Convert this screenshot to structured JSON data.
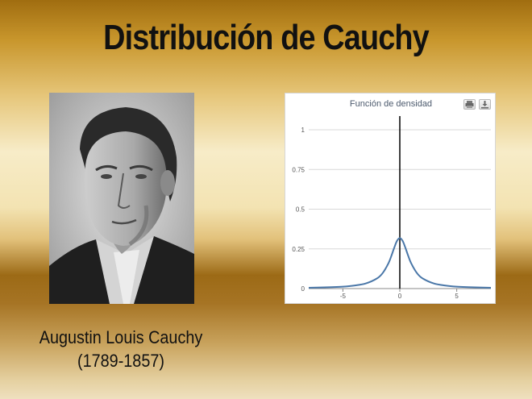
{
  "slide": {
    "title": "Distribución de Cauchy",
    "caption_name": "Augustin Louis Cauchy",
    "caption_years": "(1789-1857)"
  },
  "toolbar": {
    "print_icon": "printer-icon",
    "download_icon": "download-icon"
  },
  "colors": {
    "curve": "#4a77a8",
    "grid": "#d8d8d8",
    "axis": "#000000"
  },
  "chart_data": {
    "type": "line",
    "title": "Función de densidad",
    "xlabel": "",
    "ylabel": "",
    "xlim": [
      -8,
      8
    ],
    "ylim": [
      0,
      1
    ],
    "xticks": [
      -5,
      0,
      5
    ],
    "xtick_labels": [
      "-5",
      "0",
      "5"
    ],
    "yticks": [
      0,
      0.25,
      0.5,
      0.75,
      1
    ],
    "ytick_labels": [
      "0",
      "0.25",
      "0.5",
      "0.75",
      "1"
    ],
    "grid": true,
    "series": [
      {
        "x": [
          -8,
          -6,
          -5,
          -4,
          -3,
          -2,
          -1.5,
          -1,
          -0.75,
          -0.5,
          -0.25,
          0,
          0.25,
          0.5,
          0.75,
          1,
          1.5,
          2,
          3,
          4,
          5,
          6,
          8
        ],
        "y": [
          0.005,
          0.009,
          0.012,
          0.019,
          0.032,
          0.064,
          0.098,
          0.159,
          0.204,
          0.255,
          0.3,
          0.318,
          0.3,
          0.255,
          0.204,
          0.159,
          0.098,
          0.064,
          0.032,
          0.019,
          0.012,
          0.009,
          0.005
        ]
      }
    ]
  }
}
